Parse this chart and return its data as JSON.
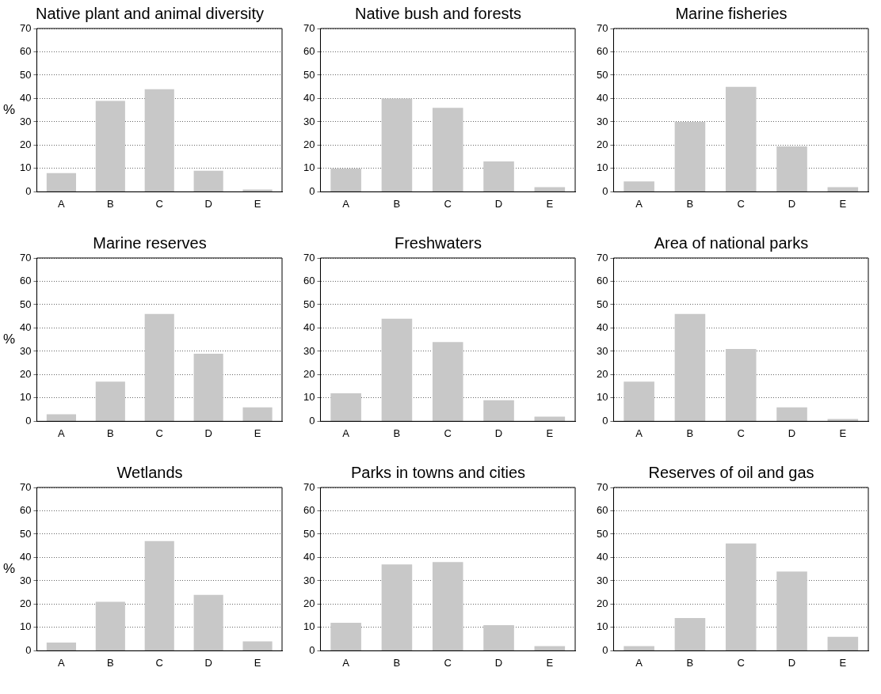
{
  "chart_data": [
    {
      "type": "bar",
      "title": "Native plant and animal diversity",
      "ylabel": "%",
      "categories": [
        "A",
        "B",
        "C",
        "D",
        "E"
      ],
      "values": [
        8,
        39,
        44,
        9,
        1
      ],
      "color": "#c8c8c8",
      "ylim": [
        0,
        70
      ],
      "yticks": [
        0,
        10,
        20,
        30,
        40,
        50,
        60,
        70
      ],
      "grid": "y"
    },
    {
      "type": "bar",
      "title": "Native bush and forests",
      "categories": [
        "A",
        "B",
        "C",
        "D",
        "E"
      ],
      "values": [
        10,
        40,
        36,
        13,
        2
      ],
      "color": "#c8c8c8",
      "ylim": [
        0,
        70
      ],
      "yticks": [
        0,
        10,
        20,
        30,
        40,
        50,
        60,
        70
      ],
      "grid": "y"
    },
    {
      "type": "bar",
      "title": "Marine fisheries",
      "categories": [
        "A",
        "B",
        "C",
        "D",
        "E"
      ],
      "values": [
        4.5,
        30,
        45,
        19.5,
        2
      ],
      "color": "#c8c8c8",
      "ylim": [
        0,
        70
      ],
      "yticks": [
        0,
        10,
        20,
        30,
        40,
        50,
        60,
        70
      ],
      "grid": "y"
    },
    {
      "type": "bar",
      "title": "Marine reserves",
      "ylabel": "%",
      "categories": [
        "A",
        "B",
        "C",
        "D",
        "E"
      ],
      "values": [
        3,
        17,
        46,
        29,
        6
      ],
      "color": "#c8c8c8",
      "ylim": [
        0,
        70
      ],
      "yticks": [
        0,
        10,
        20,
        30,
        40,
        50,
        60,
        70
      ],
      "grid": "y"
    },
    {
      "type": "bar",
      "title": "Freshwaters",
      "categories": [
        "A",
        "B",
        "C",
        "D",
        "E"
      ],
      "values": [
        12,
        44,
        34,
        9,
        2
      ],
      "color": "#c8c8c8",
      "ylim": [
        0,
        70
      ],
      "yticks": [
        0,
        10,
        20,
        30,
        40,
        50,
        60,
        70
      ],
      "grid": "y"
    },
    {
      "type": "bar",
      "title": "Area of national parks",
      "categories": [
        "A",
        "B",
        "C",
        "D",
        "E"
      ],
      "values": [
        17,
        46,
        31,
        6,
        1
      ],
      "color": "#c8c8c8",
      "ylim": [
        0,
        70
      ],
      "yticks": [
        0,
        10,
        20,
        30,
        40,
        50,
        60,
        70
      ],
      "grid": "y"
    },
    {
      "type": "bar",
      "title": "Wetlands",
      "ylabel": "%",
      "categories": [
        "A",
        "B",
        "C",
        "D",
        "E"
      ],
      "values": [
        3.5,
        21,
        47,
        24,
        4
      ],
      "color": "#c8c8c8",
      "ylim": [
        0,
        70
      ],
      "yticks": [
        0,
        10,
        20,
        30,
        40,
        50,
        60,
        70
      ],
      "grid": "y"
    },
    {
      "type": "bar",
      "title": "Parks in towns and cities",
      "categories": [
        "A",
        "B",
        "C",
        "D",
        "E"
      ],
      "values": [
        12,
        37,
        38,
        11,
        2
      ],
      "color": "#c8c8c8",
      "ylim": [
        0,
        70
      ],
      "yticks": [
        0,
        10,
        20,
        30,
        40,
        50,
        60,
        70
      ],
      "grid": "y"
    },
    {
      "type": "bar",
      "title": "Reserves of oil and gas",
      "categories": [
        "A",
        "B",
        "C",
        "D",
        "E"
      ],
      "values": [
        2,
        14,
        46,
        34,
        6
      ],
      "color": "#c8c8c8",
      "ylim": [
        0,
        70
      ],
      "yticks": [
        0,
        10,
        20,
        30,
        40,
        50,
        60,
        70
      ],
      "grid": "y"
    }
  ]
}
